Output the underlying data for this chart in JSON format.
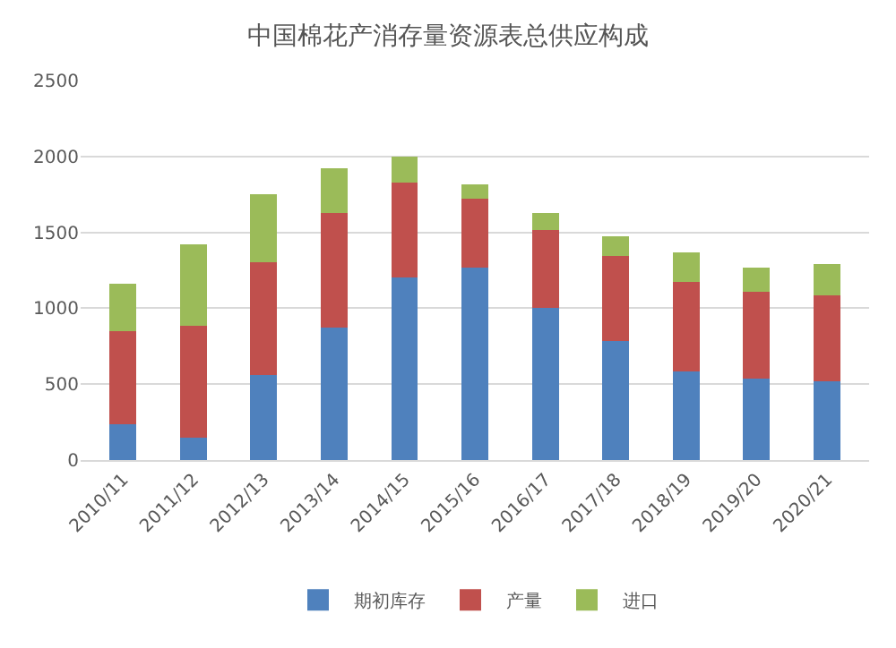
{
  "chart_data": {
    "type": "bar",
    "title": "中国棉花产消存量资源表总供应构成",
    "stacked": true,
    "categories": [
      "2010/11",
      "2011/12",
      "2012/13",
      "2013/14",
      "2014/15",
      "2015/16",
      "2016/17",
      "2017/18",
      "2018/19",
      "2019/20",
      "2020/21"
    ],
    "series": [
      {
        "name": "期初库存",
        "color": "#4f81bd",
        "values": [
          235,
          145,
          560,
          870,
          1200,
          1265,
          1000,
          785,
          585,
          535,
          520
        ]
      },
      {
        "name": "产量",
        "color": "#c0504d",
        "values": [
          615,
          740,
          745,
          760,
          625,
          455,
          515,
          560,
          590,
          575,
          565
        ]
      },
      {
        "name": "进口",
        "color": "#9bbb59",
        "values": [
          310,
          535,
          445,
          290,
          175,
          95,
          115,
          130,
          195,
          155,
          205
        ]
      }
    ],
    "ylim": [
      0,
      2500
    ],
    "yticks": [
      0,
      500,
      1000,
      1500,
      2000,
      2500
    ],
    "grid": "y",
    "legend": "bottom"
  }
}
